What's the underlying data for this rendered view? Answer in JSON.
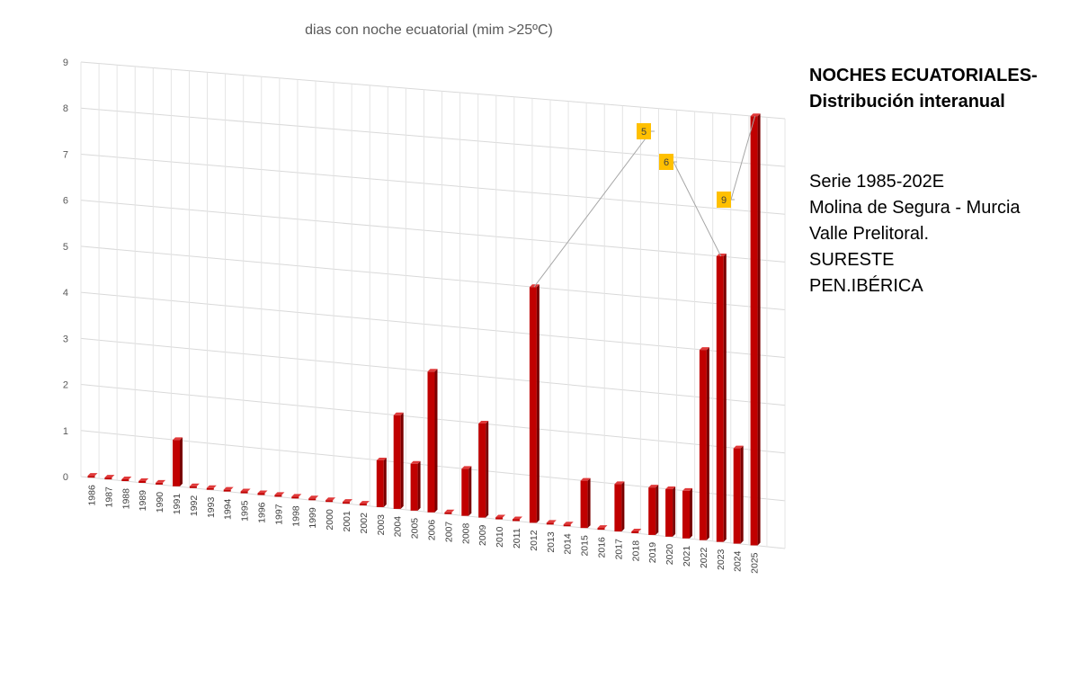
{
  "side_panel": {
    "heading": [
      "NOCHES ECUATORIALES-",
      "Distribución interanual"
    ],
    "info": [
      "Serie 1985-202E",
      "Molina de Segura - Murcia",
      "Valle Prelitoral.",
      "SURESTE",
      "PEN.IBÉRICA"
    ]
  },
  "chart_data": {
    "type": "bar",
    "title": "dias con noche ecuatorial (mim >25ºC)",
    "xlabel": "",
    "ylabel": "",
    "ylim": [
      0,
      9
    ],
    "yticks": [
      0,
      1,
      2,
      3,
      4,
      5,
      6,
      7,
      8,
      9
    ],
    "grid": true,
    "style": "3d-column",
    "bar_color": "#c00000",
    "callout_color": "#ffc000",
    "categories": [
      "1986",
      "1987",
      "1988",
      "1989",
      "1990",
      "1991",
      "1992",
      "1993",
      "1994",
      "1995",
      "1996",
      "1997",
      "1998",
      "1999",
      "2000",
      "2001",
      "2002",
      "2003",
      "2004",
      "2005",
      "2006",
      "2007",
      "2008",
      "2009",
      "2010",
      "2011",
      "2012",
      "2013",
      "2014",
      "2015",
      "2016",
      "2017",
      "2018",
      "2019",
      "2020",
      "2021",
      "2022",
      "2023",
      "2024",
      "2025"
    ],
    "values": [
      0,
      0,
      0,
      0,
      0,
      1,
      0,
      0,
      0,
      0,
      0,
      0,
      0,
      0,
      0,
      0,
      0,
      1,
      2,
      1,
      3,
      0,
      1,
      2,
      0,
      0,
      5,
      0,
      0,
      1,
      0,
      1,
      0,
      1,
      1,
      1,
      4,
      6,
      2,
      9
    ],
    "callouts": [
      {
        "category": "2012",
        "label": "5"
      },
      {
        "category": "2023",
        "label": "6"
      },
      {
        "category": "2025",
        "label": "9"
      }
    ]
  }
}
